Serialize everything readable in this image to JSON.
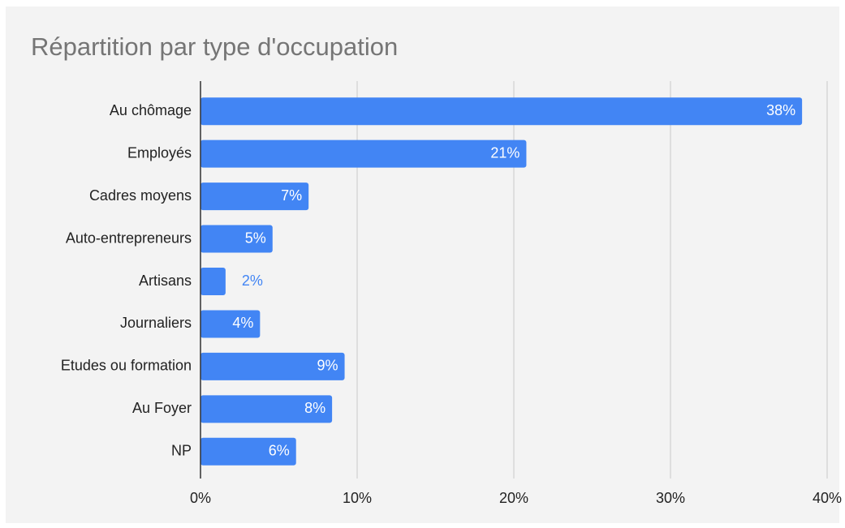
{
  "chart_data": {
    "type": "bar",
    "orientation": "horizontal",
    "title": "Répartition par type d'occupation",
    "categories": [
      "Au chômage",
      "Employés",
      "Cadres moyens",
      "Auto-entrepreneurs",
      "Artisans",
      "Journaliers",
      "Etudes ou formation",
      "Au Foyer",
      "NP"
    ],
    "values": [
      38.4,
      20.8,
      6.9,
      4.6,
      1.6,
      3.8,
      9.2,
      8.4,
      6.1
    ],
    "value_labels": [
      "38%",
      "21%",
      "7%",
      "5%",
      "2%",
      "4%",
      "9%",
      "8%",
      "6%"
    ],
    "color": "#4285f4",
    "xlim": [
      0,
      40
    ],
    "xticks": [
      {
        "value": 0,
        "label": "0%"
      },
      {
        "value": 10,
        "label": "10%"
      },
      {
        "value": 20,
        "label": "20%"
      },
      {
        "value": 30,
        "label": "30%"
      },
      {
        "value": 40,
        "label": "40%"
      }
    ],
    "grid": true
  }
}
